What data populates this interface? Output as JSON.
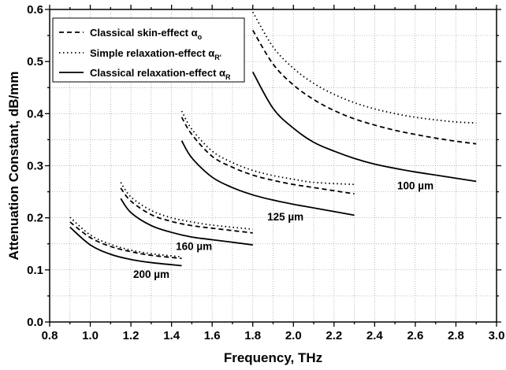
{
  "chart_data": {
    "type": "line",
    "xlabel": "Frequency, THz",
    "ylabel": "Attenuation Constant, dB/mm",
    "xlim": [
      0.8,
      3.0
    ],
    "ylim": [
      0.0,
      0.6
    ],
    "xticks": [
      "0.8",
      "1.0",
      "1.2",
      "1.4",
      "1.6",
      "1.8",
      "2.0",
      "2.2",
      "2.4",
      "2.6",
      "2.8",
      "3.0"
    ],
    "yticks": [
      "0.0",
      "0.1",
      "0.2",
      "0.3",
      "0.4",
      "0.5",
      "0.6"
    ],
    "grid": true,
    "legend_position": "top-left",
    "legend": [
      {
        "text": "Classical skin-effect α",
        "sub": "o",
        "style": "dashed"
      },
      {
        "text": "Simple relaxation-effect α",
        "sub": "R'",
        "style": "dotted"
      },
      {
        "text": "Classical relaxation-effect α",
        "sub": "R",
        "style": "solid"
      }
    ],
    "groups": [
      {
        "label": "200 µm",
        "x": [
          0.9,
          1.0,
          1.1,
          1.2,
          1.3,
          1.45
        ],
        "skin": [
          0.192,
          0.162,
          0.145,
          0.135,
          0.128,
          0.122
        ],
        "simple": [
          0.201,
          0.167,
          0.149,
          0.138,
          0.131,
          0.125
        ],
        "classical": [
          0.182,
          0.148,
          0.13,
          0.12,
          0.114,
          0.108
        ]
      },
      {
        "label": "160 µm",
        "x": [
          1.15,
          1.2,
          1.3,
          1.4,
          1.5,
          1.6,
          1.8
        ],
        "skin": [
          0.257,
          0.232,
          0.206,
          0.193,
          0.185,
          0.18,
          0.171
        ],
        "simple": [
          0.268,
          0.24,
          0.214,
          0.2,
          0.192,
          0.186,
          0.178
        ],
        "classical": [
          0.237,
          0.21,
          0.185,
          0.172,
          0.163,
          0.158,
          0.148
        ]
      },
      {
        "label": "125 µm",
        "x": [
          1.45,
          1.5,
          1.6,
          1.7,
          1.8,
          1.9,
          2.0,
          2.1,
          2.3
        ],
        "skin": [
          0.393,
          0.36,
          0.318,
          0.297,
          0.282,
          0.272,
          0.264,
          0.258,
          0.246
        ],
        "simple": [
          0.405,
          0.37,
          0.328,
          0.306,
          0.291,
          0.281,
          0.274,
          0.268,
          0.264
        ],
        "classical": [
          0.348,
          0.315,
          0.278,
          0.258,
          0.244,
          0.234,
          0.226,
          0.219,
          0.205
        ]
      },
      {
        "label": "100 µm",
        "x": [
          1.8,
          1.9,
          2.0,
          2.1,
          2.2,
          2.3,
          2.4,
          2.5,
          2.6,
          2.7,
          2.8,
          2.9
        ],
        "skin": [
          0.56,
          0.495,
          0.455,
          0.427,
          0.406,
          0.39,
          0.378,
          0.368,
          0.36,
          0.353,
          0.347,
          0.342
        ],
        "simple": [
          0.595,
          0.528,
          0.487,
          0.458,
          0.437,
          0.421,
          0.409,
          0.4,
          0.393,
          0.388,
          0.384,
          0.382
        ],
        "classical": [
          0.48,
          0.41,
          0.372,
          0.345,
          0.328,
          0.314,
          0.303,
          0.295,
          0.288,
          0.282,
          0.276,
          0.27
        ]
      }
    ]
  }
}
